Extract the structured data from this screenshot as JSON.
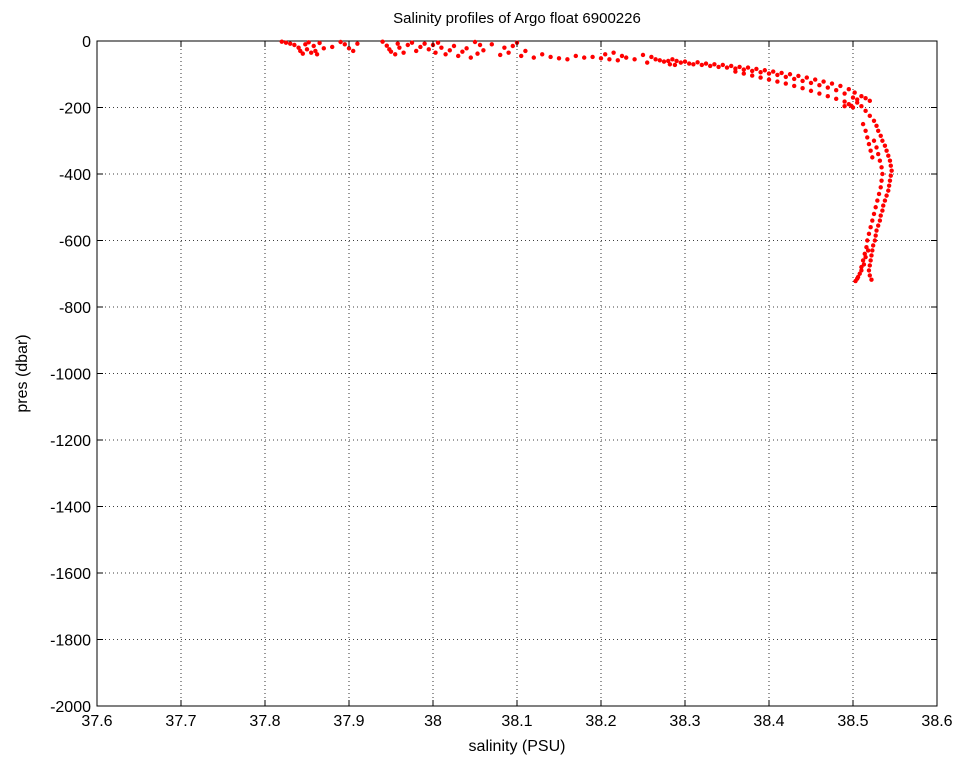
{
  "chart_data": {
    "type": "scatter",
    "title": "Salinity profiles of Argo float 6900226",
    "xlabel": "salinity (PSU)",
    "ylabel": "pres (dbar)",
    "xlim": [
      37.6,
      38.6
    ],
    "ylim": [
      -2000,
      0
    ],
    "xticks": [
      "37.6",
      "37.7",
      "37.8",
      "37.9",
      "38",
      "38.1",
      "38.2",
      "38.3",
      "38.4",
      "38.5",
      "38.6"
    ],
    "yticks": [
      "0",
      "-200",
      "-400",
      "-600",
      "-800",
      "-1000",
      "-1200",
      "-1400",
      "-1600",
      "-1800",
      "-2000"
    ],
    "grid": true,
    "grid_style": "dotted",
    "marker_color": "#ff0000",
    "series": [
      {
        "points": [
          [
            37.82,
            -2
          ],
          [
            37.825,
            -5
          ],
          [
            37.83,
            -8
          ],
          [
            37.835,
            -12
          ],
          [
            37.84,
            -20
          ],
          [
            37.842,
            -30
          ],
          [
            37.845,
            -38
          ],
          [
            37.848,
            -10
          ],
          [
            37.85,
            -25
          ],
          [
            37.852,
            -4
          ],
          [
            37.855,
            -35
          ],
          [
            37.858,
            -15
          ],
          [
            37.86,
            -30
          ],
          [
            37.862,
            -40
          ],
          [
            37.865,
            -6
          ],
          [
            37.87,
            -22
          ],
          [
            37.88,
            -18
          ],
          [
            37.89,
            -3
          ],
          [
            37.895,
            -10
          ],
          [
            37.9,
            -22
          ],
          [
            37.905,
            -30
          ],
          [
            37.91,
            -8
          ],
          [
            37.94,
            -2
          ],
          [
            37.945,
            -14
          ],
          [
            37.948,
            -25
          ],
          [
            37.95,
            -32
          ],
          [
            37.955,
            -40
          ],
          [
            37.958,
            -8
          ],
          [
            37.96,
            -20
          ],
          [
            37.965,
            -35
          ],
          [
            37.97,
            -12
          ],
          [
            37.975,
            -5
          ],
          [
            37.98,
            -30
          ],
          [
            37.985,
            -18
          ],
          [
            37.99,
            -8
          ],
          [
            37.995,
            -25
          ],
          [
            38.0,
            -12
          ],
          [
            38.003,
            -35
          ],
          [
            38.006,
            -5
          ],
          [
            38.01,
            -20
          ],
          [
            38.015,
            -40
          ],
          [
            38.02,
            -28
          ],
          [
            38.025,
            -15
          ],
          [
            38.03,
            -45
          ],
          [
            38.035,
            -32
          ],
          [
            38.04,
            -22
          ],
          [
            38.045,
            -50
          ],
          [
            38.05,
            -3
          ],
          [
            38.053,
            -38
          ],
          [
            38.056,
            -12
          ],
          [
            38.06,
            -28
          ],
          [
            38.07,
            -10
          ],
          [
            38.08,
            -42
          ],
          [
            38.085,
            -20
          ],
          [
            38.09,
            -35
          ],
          [
            38.095,
            -15
          ],
          [
            38.1,
            -5
          ],
          [
            38.105,
            -45
          ],
          [
            38.11,
            -30
          ],
          [
            38.12,
            -50
          ],
          [
            38.13,
            -40
          ],
          [
            38.14,
            -48
          ],
          [
            38.15,
            -52
          ],
          [
            38.16,
            -55
          ],
          [
            38.17,
            -45
          ],
          [
            38.18,
            -50
          ],
          [
            38.19,
            -48
          ],
          [
            38.2,
            -52
          ],
          [
            38.205,
            -40
          ],
          [
            38.21,
            -55
          ],
          [
            38.215,
            -35
          ],
          [
            38.22,
            -58
          ],
          [
            38.225,
            -45
          ],
          [
            38.23,
            -50
          ],
          [
            38.24,
            -55
          ],
          [
            38.25,
            -42
          ],
          [
            38.255,
            -65
          ],
          [
            38.26,
            -48
          ],
          [
            38.265,
            -55
          ],
          [
            38.27,
            -58
          ],
          [
            38.275,
            -62
          ],
          [
            38.28,
            -60
          ],
          [
            38.282,
            -70
          ],
          [
            38.285,
            -55
          ],
          [
            38.288,
            -72
          ],
          [
            38.29,
            -60
          ],
          [
            38.295,
            -65
          ],
          [
            38.3,
            -62
          ],
          [
            38.305,
            -68
          ],
          [
            38.31,
            -70
          ],
          [
            38.315,
            -64
          ],
          [
            38.32,
            -72
          ],
          [
            38.325,
            -68
          ],
          [
            38.33,
            -75
          ],
          [
            38.335,
            -70
          ],
          [
            38.34,
            -78
          ],
          [
            38.345,
            -72
          ],
          [
            38.35,
            -80
          ],
          [
            38.355,
            -75
          ],
          [
            38.36,
            -83
          ],
          [
            38.365,
            -78
          ],
          [
            38.37,
            -86
          ],
          [
            38.375,
            -80
          ],
          [
            38.38,
            -90
          ],
          [
            38.385,
            -84
          ],
          [
            38.39,
            -94
          ],
          [
            38.395,
            -88
          ],
          [
            38.4,
            -98
          ],
          [
            38.405,
            -92
          ],
          [
            38.41,
            -102
          ],
          [
            38.415,
            -96
          ],
          [
            38.42,
            -108
          ],
          [
            38.425,
            -100
          ],
          [
            38.43,
            -114
          ],
          [
            38.435,
            -105
          ],
          [
            38.44,
            -120
          ],
          [
            38.445,
            -110
          ],
          [
            38.45,
            -126
          ],
          [
            38.455,
            -116
          ],
          [
            38.46,
            -133
          ],
          [
            38.465,
            -122
          ],
          [
            38.47,
            -140
          ],
          [
            38.475,
            -128
          ],
          [
            38.48,
            -148
          ],
          [
            38.485,
            -135
          ],
          [
            38.49,
            -158
          ],
          [
            38.495,
            -145
          ],
          [
            38.5,
            -170
          ],
          [
            38.502,
            -155
          ],
          [
            38.505,
            -185
          ],
          [
            38.498,
            -195
          ],
          [
            38.495,
            -190
          ],
          [
            38.36,
            -92
          ],
          [
            38.37,
            -98
          ],
          [
            38.38,
            -104
          ],
          [
            38.39,
            -110
          ],
          [
            38.4,
            -116
          ],
          [
            38.41,
            -122
          ],
          [
            38.42,
            -128
          ],
          [
            38.43,
            -135
          ],
          [
            38.44,
            -142
          ],
          [
            38.45,
            -150
          ],
          [
            38.46,
            -158
          ],
          [
            38.47,
            -166
          ],
          [
            38.48,
            -174
          ],
          [
            38.49,
            -182
          ],
          [
            38.49,
            -196
          ],
          [
            38.5,
            -200
          ],
          [
            38.505,
            -176
          ],
          [
            38.51,
            -166
          ],
          [
            38.515,
            -172
          ],
          [
            38.52,
            -180
          ],
          [
            38.51,
            -196
          ],
          [
            38.515,
            -210
          ],
          [
            38.52,
            -225
          ],
          [
            38.525,
            -240
          ],
          [
            38.528,
            -255
          ],
          [
            38.53,
            -270
          ],
          [
            38.533,
            -285
          ],
          [
            38.535,
            -300
          ],
          [
            38.538,
            -315
          ],
          [
            38.54,
            -330
          ],
          [
            38.542,
            -345
          ],
          [
            38.544,
            -360
          ],
          [
            38.545,
            -375
          ],
          [
            38.546,
            -390
          ],
          [
            38.545,
            -405
          ],
          [
            38.544,
            -420
          ],
          [
            38.543,
            -435
          ],
          [
            38.542,
            -450
          ],
          [
            38.54,
            -465
          ],
          [
            38.538,
            -480
          ],
          [
            38.536,
            -495
          ],
          [
            38.535,
            -510
          ],
          [
            38.533,
            -525
          ],
          [
            38.532,
            -540
          ],
          [
            38.53,
            -555
          ],
          [
            38.528,
            -570
          ],
          [
            38.527,
            -585
          ],
          [
            38.526,
            -600
          ],
          [
            38.524,
            -615
          ],
          [
            38.523,
            -630
          ],
          [
            38.522,
            -645
          ],
          [
            38.521,
            -660
          ],
          [
            38.52,
            -675
          ],
          [
            38.519,
            -690
          ],
          [
            38.52,
            -705
          ],
          [
            38.522,
            -718
          ],
          [
            38.525,
            -300
          ],
          [
            38.528,
            -320
          ],
          [
            38.53,
            -340
          ],
          [
            38.532,
            -360
          ],
          [
            38.534,
            -380
          ],
          [
            38.535,
            -400
          ],
          [
            38.534,
            -420
          ],
          [
            38.533,
            -440
          ],
          [
            38.531,
            -460
          ],
          [
            38.529,
            -480
          ],
          [
            38.527,
            -500
          ],
          [
            38.525,
            -520
          ],
          [
            38.523,
            -540
          ],
          [
            38.521,
            -560
          ],
          [
            38.519,
            -580
          ],
          [
            38.517,
            -600
          ],
          [
            38.516,
            -620
          ],
          [
            38.514,
            -640
          ],
          [
            38.512,
            -660
          ],
          [
            38.51,
            -680
          ],
          [
            38.508,
            -700
          ],
          [
            38.505,
            -715
          ],
          [
            38.503,
            -722
          ],
          [
            38.506,
            -710
          ],
          [
            38.51,
            -690
          ],
          [
            38.513,
            -672
          ],
          [
            38.515,
            -650
          ],
          [
            38.518,
            -630
          ],
          [
            38.512,
            -250
          ],
          [
            38.515,
            -270
          ],
          [
            38.517,
            -290
          ],
          [
            38.519,
            -310
          ],
          [
            38.521,
            -330
          ],
          [
            38.523,
            -350
          ]
        ]
      }
    ]
  }
}
